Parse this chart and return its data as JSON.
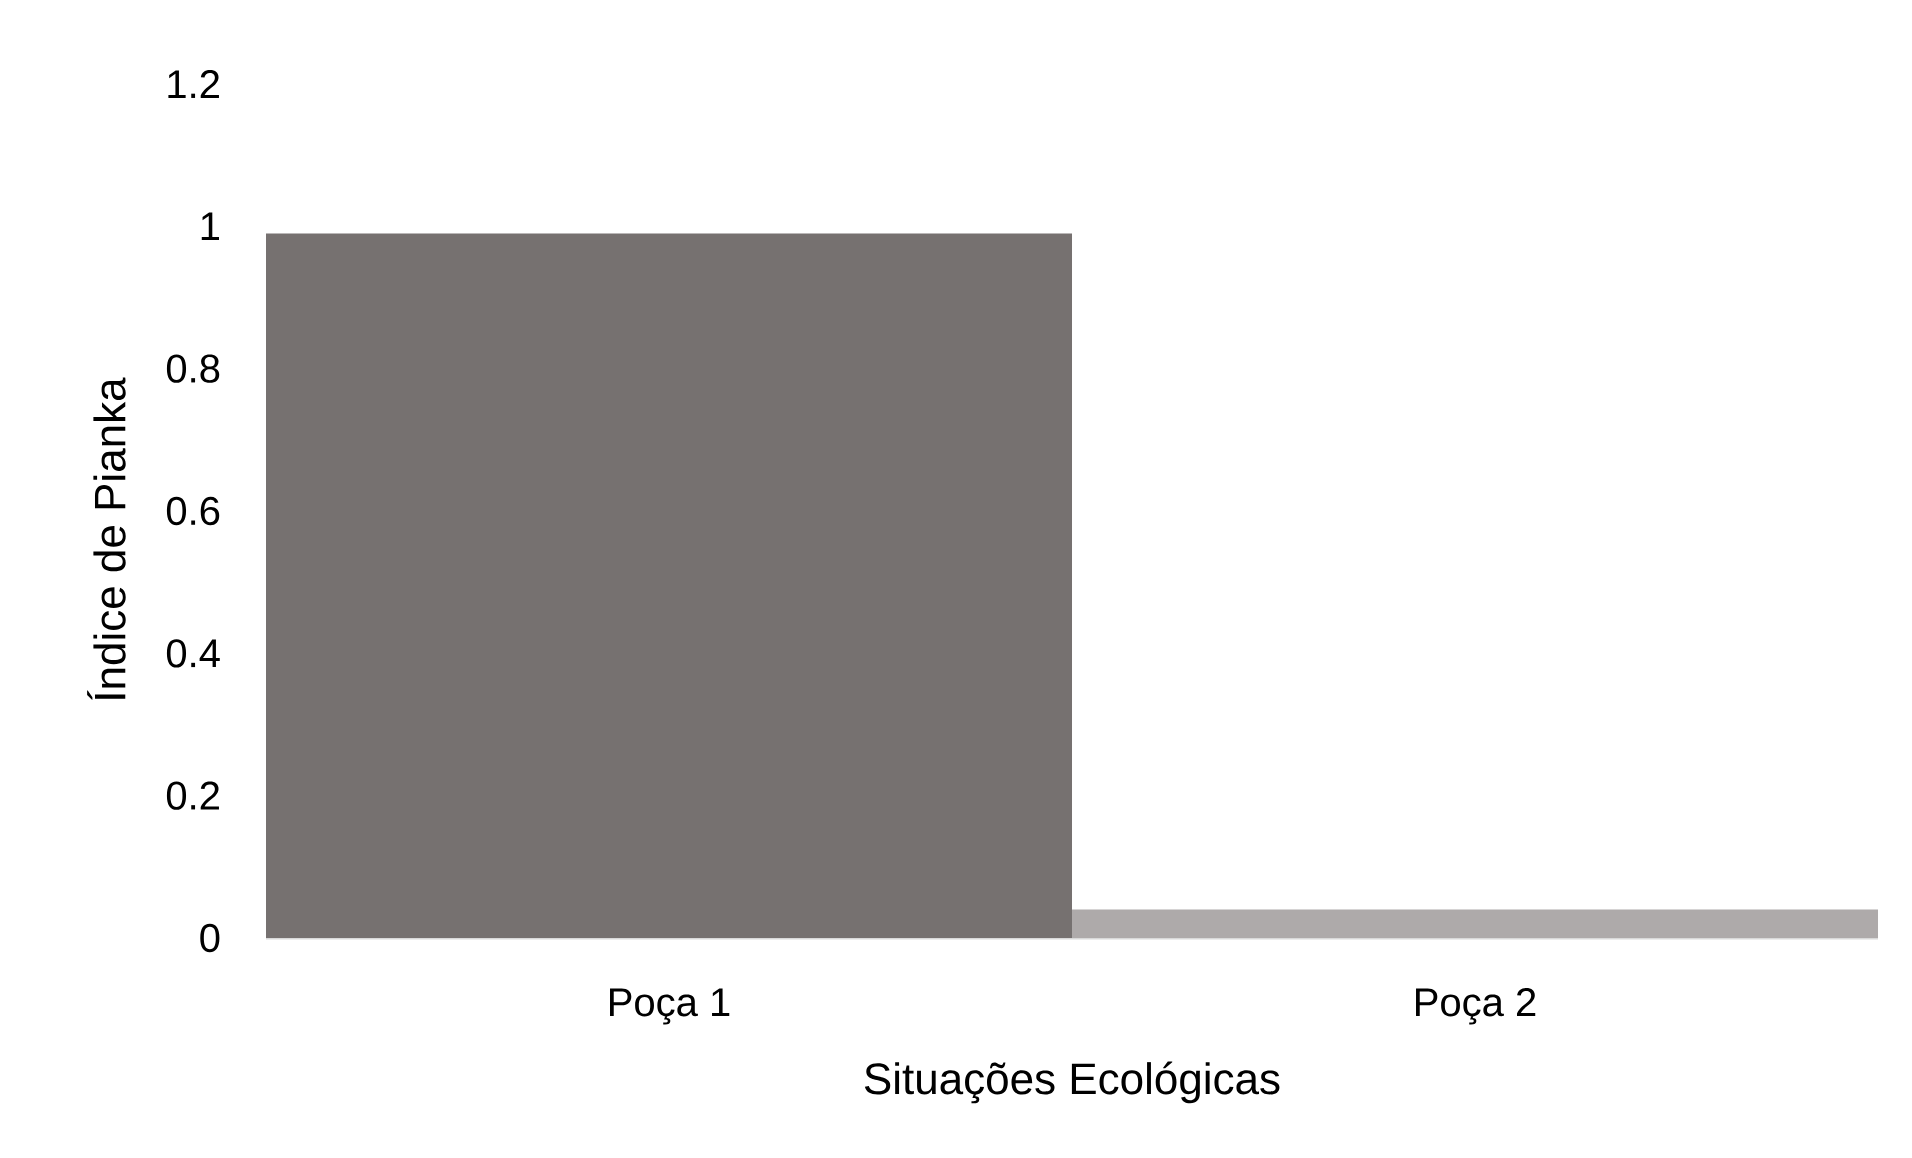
{
  "chart_data": {
    "type": "bar",
    "xlabel": "Situações Ecológicas",
    "ylabel": "Índice de Pianka",
    "categories": [
      "Poça 1",
      "Poça 2"
    ],
    "values": [
      0.99,
      0.04
    ],
    "colors": [
      "#767170",
      "#aeaaaa"
    ],
    "ylim": [
      0,
      1.2
    ],
    "yticks": [
      0,
      0.2,
      0.4,
      0.6,
      0.8,
      1,
      1.2
    ]
  }
}
